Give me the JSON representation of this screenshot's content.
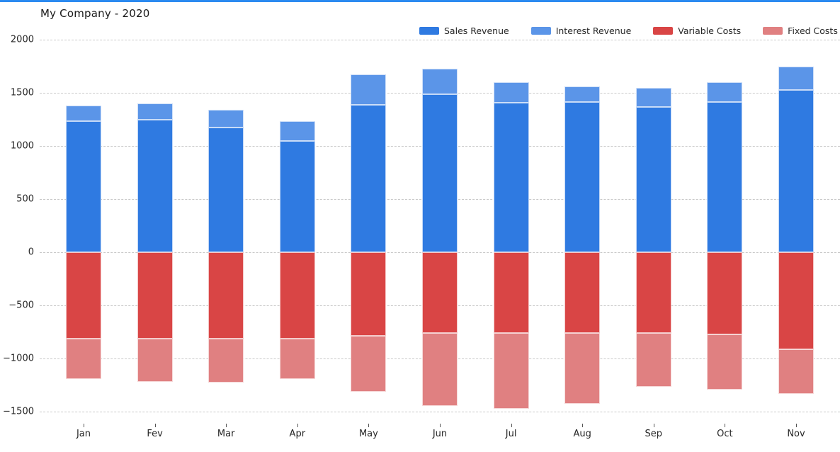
{
  "title": "My Company - 2020",
  "accent_color": "#2b8af0",
  "legend": [
    {
      "label": "Sales Revenue",
      "color": "#2f7ae1"
    },
    {
      "label": "Interest Revenue",
      "color": "#5b95e8"
    },
    {
      "label": "Variable Costs",
      "color": "#d94545"
    },
    {
      "label": "Fixed Costs",
      "color": "#e08081"
    }
  ],
  "chart_data": {
    "type": "bar",
    "stacked": true,
    "title": "My Company - 2020",
    "categories": [
      "Jan",
      "Fev",
      "Mar",
      "Apr",
      "May",
      "Jun",
      "Jul",
      "Aug",
      "Sep",
      "Oct",
      "Nov"
    ],
    "series": [
      {
        "name": "Sales Revenue",
        "color": "#2f7ae1",
        "values": [
          1235,
          1245,
          1175,
          1050,
          1385,
          1485,
          1410,
          1415,
          1365,
          1415,
          1530
        ]
      },
      {
        "name": "Interest Revenue",
        "color": "#5b95e8",
        "values": [
          145,
          155,
          165,
          185,
          290,
          240,
          190,
          145,
          185,
          185,
          220
        ]
      },
      {
        "name": "Variable Costs",
        "color": "#d94545",
        "values": [
          -815,
          -815,
          -815,
          -815,
          -785,
          -760,
          -760,
          -760,
          -760,
          -775,
          -910
        ]
      },
      {
        "name": "Fixed Costs",
        "color": "#e08081",
        "values": [
          -380,
          -405,
          -410,
          -380,
          -530,
          -685,
          -715,
          -665,
          -505,
          -515,
          -425
        ]
      }
    ],
    "xlabel": "",
    "ylabel": "",
    "ylim": [
      -1500,
      2000
    ],
    "yticks": [
      2000,
      1500,
      1000,
      500,
      0,
      -500,
      -1000,
      -1500
    ],
    "grid": "horizontal-dashed",
    "legend_position": "top-right"
  }
}
